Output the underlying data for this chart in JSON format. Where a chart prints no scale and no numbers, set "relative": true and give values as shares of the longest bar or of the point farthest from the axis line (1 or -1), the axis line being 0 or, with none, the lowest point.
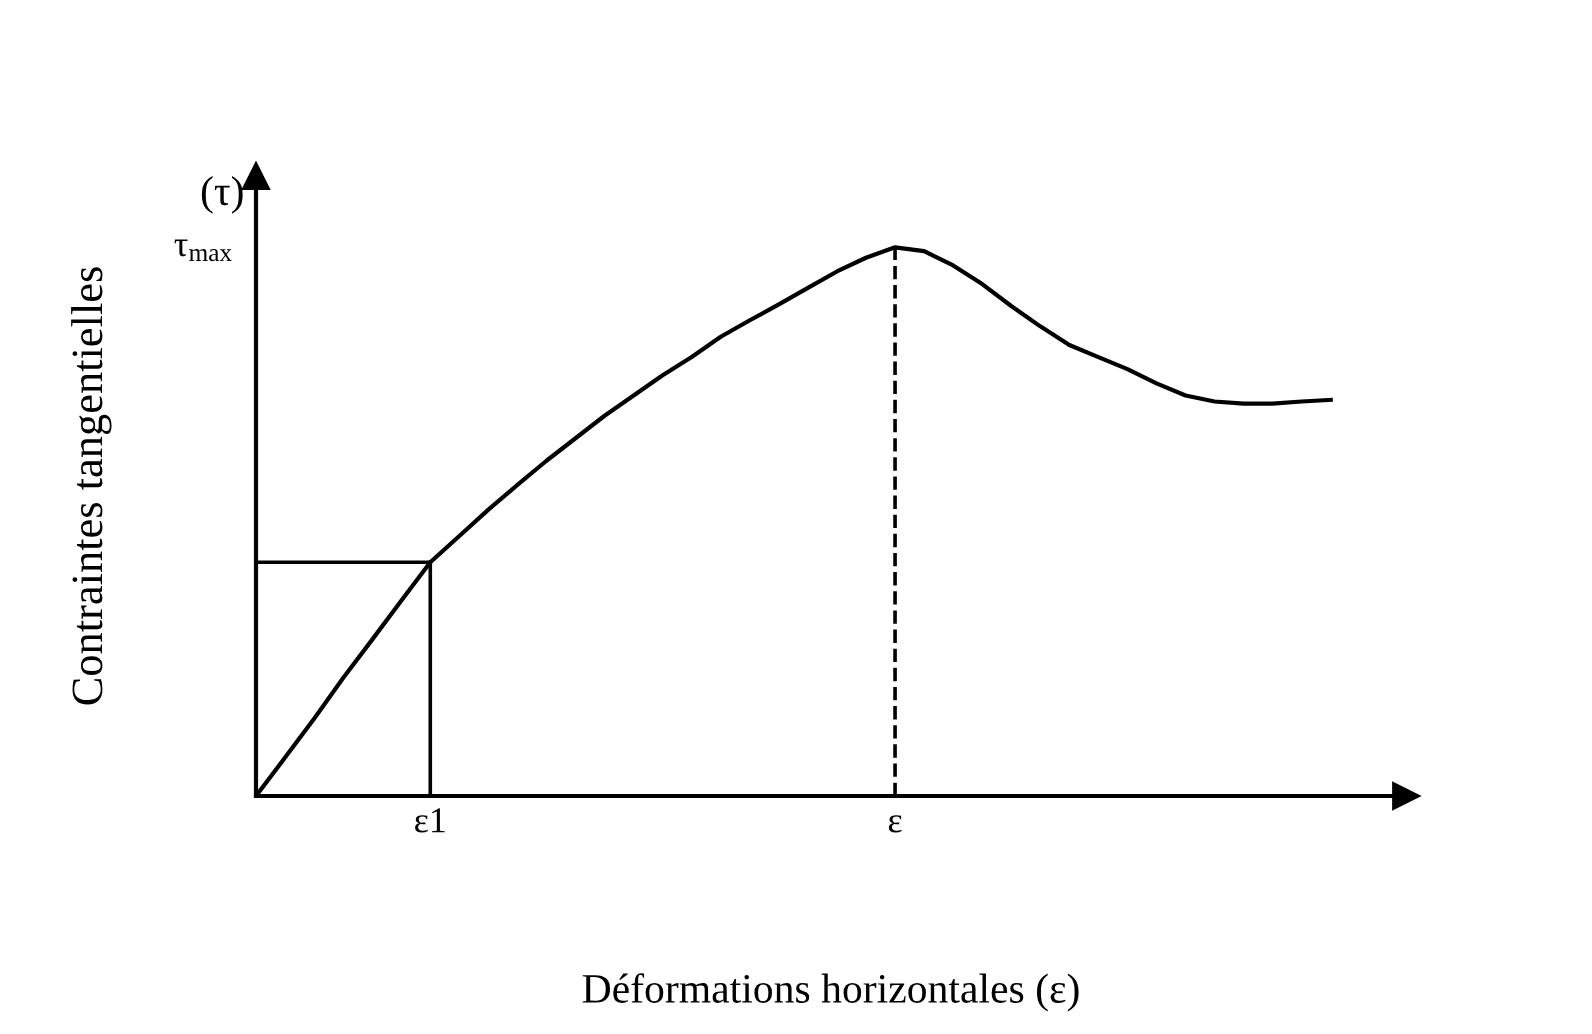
{
  "chart_data": {
    "type": "line",
    "relative": true,
    "xlabel": "Déformations horizontales (ε)",
    "ylabel": "Contraintes tangentielles",
    "categories": [
      null,
      null,
      null,
      null,
      null,
      null,
      "ε1",
      null,
      null,
      null,
      null,
      null,
      null,
      null,
      null,
      null,
      null,
      null,
      null,
      null,
      null,
      null,
      "ε",
      null,
      null,
      null,
      null,
      null,
      null,
      null,
      null,
      null,
      null,
      null,
      null,
      null,
      null,
      null
    ],
    "series": [
      {
        "color": "#000000",
        "values": [
          0,
          0.07,
          0.141,
          0.215,
          0.285,
          0.356,
          0.426,
          0.474,
          0.522,
          0.567,
          0.611,
          0.652,
          0.693,
          0.73,
          0.767,
          0.8,
          0.837,
          0.867,
          0.896,
          0.926,
          0.956,
          0.981,
          1,
          0.993,
          0.967,
          0.933,
          0.893,
          0.856,
          0.822,
          0.8,
          0.778,
          0.752,
          0.73,
          0.719,
          0.715,
          0.715,
          0.719,
          0.722
        ]
      }
    ],
    "ref_lines": [
      {
        "axis": "x",
        "value": "ε1",
        "line_style": "solid"
      },
      {
        "axis": "y",
        "value": 0.426,
        "line_style": "solid"
      },
      {
        "axis": "x",
        "value": "ε",
        "line_style": "dashed"
      }
    ],
    "annotations": [
      "(τ)",
      "τ$_{max}$"
    ],
    "marker": "none",
    "line_style": "solid",
    "grid": false,
    "legend": false
  }
}
